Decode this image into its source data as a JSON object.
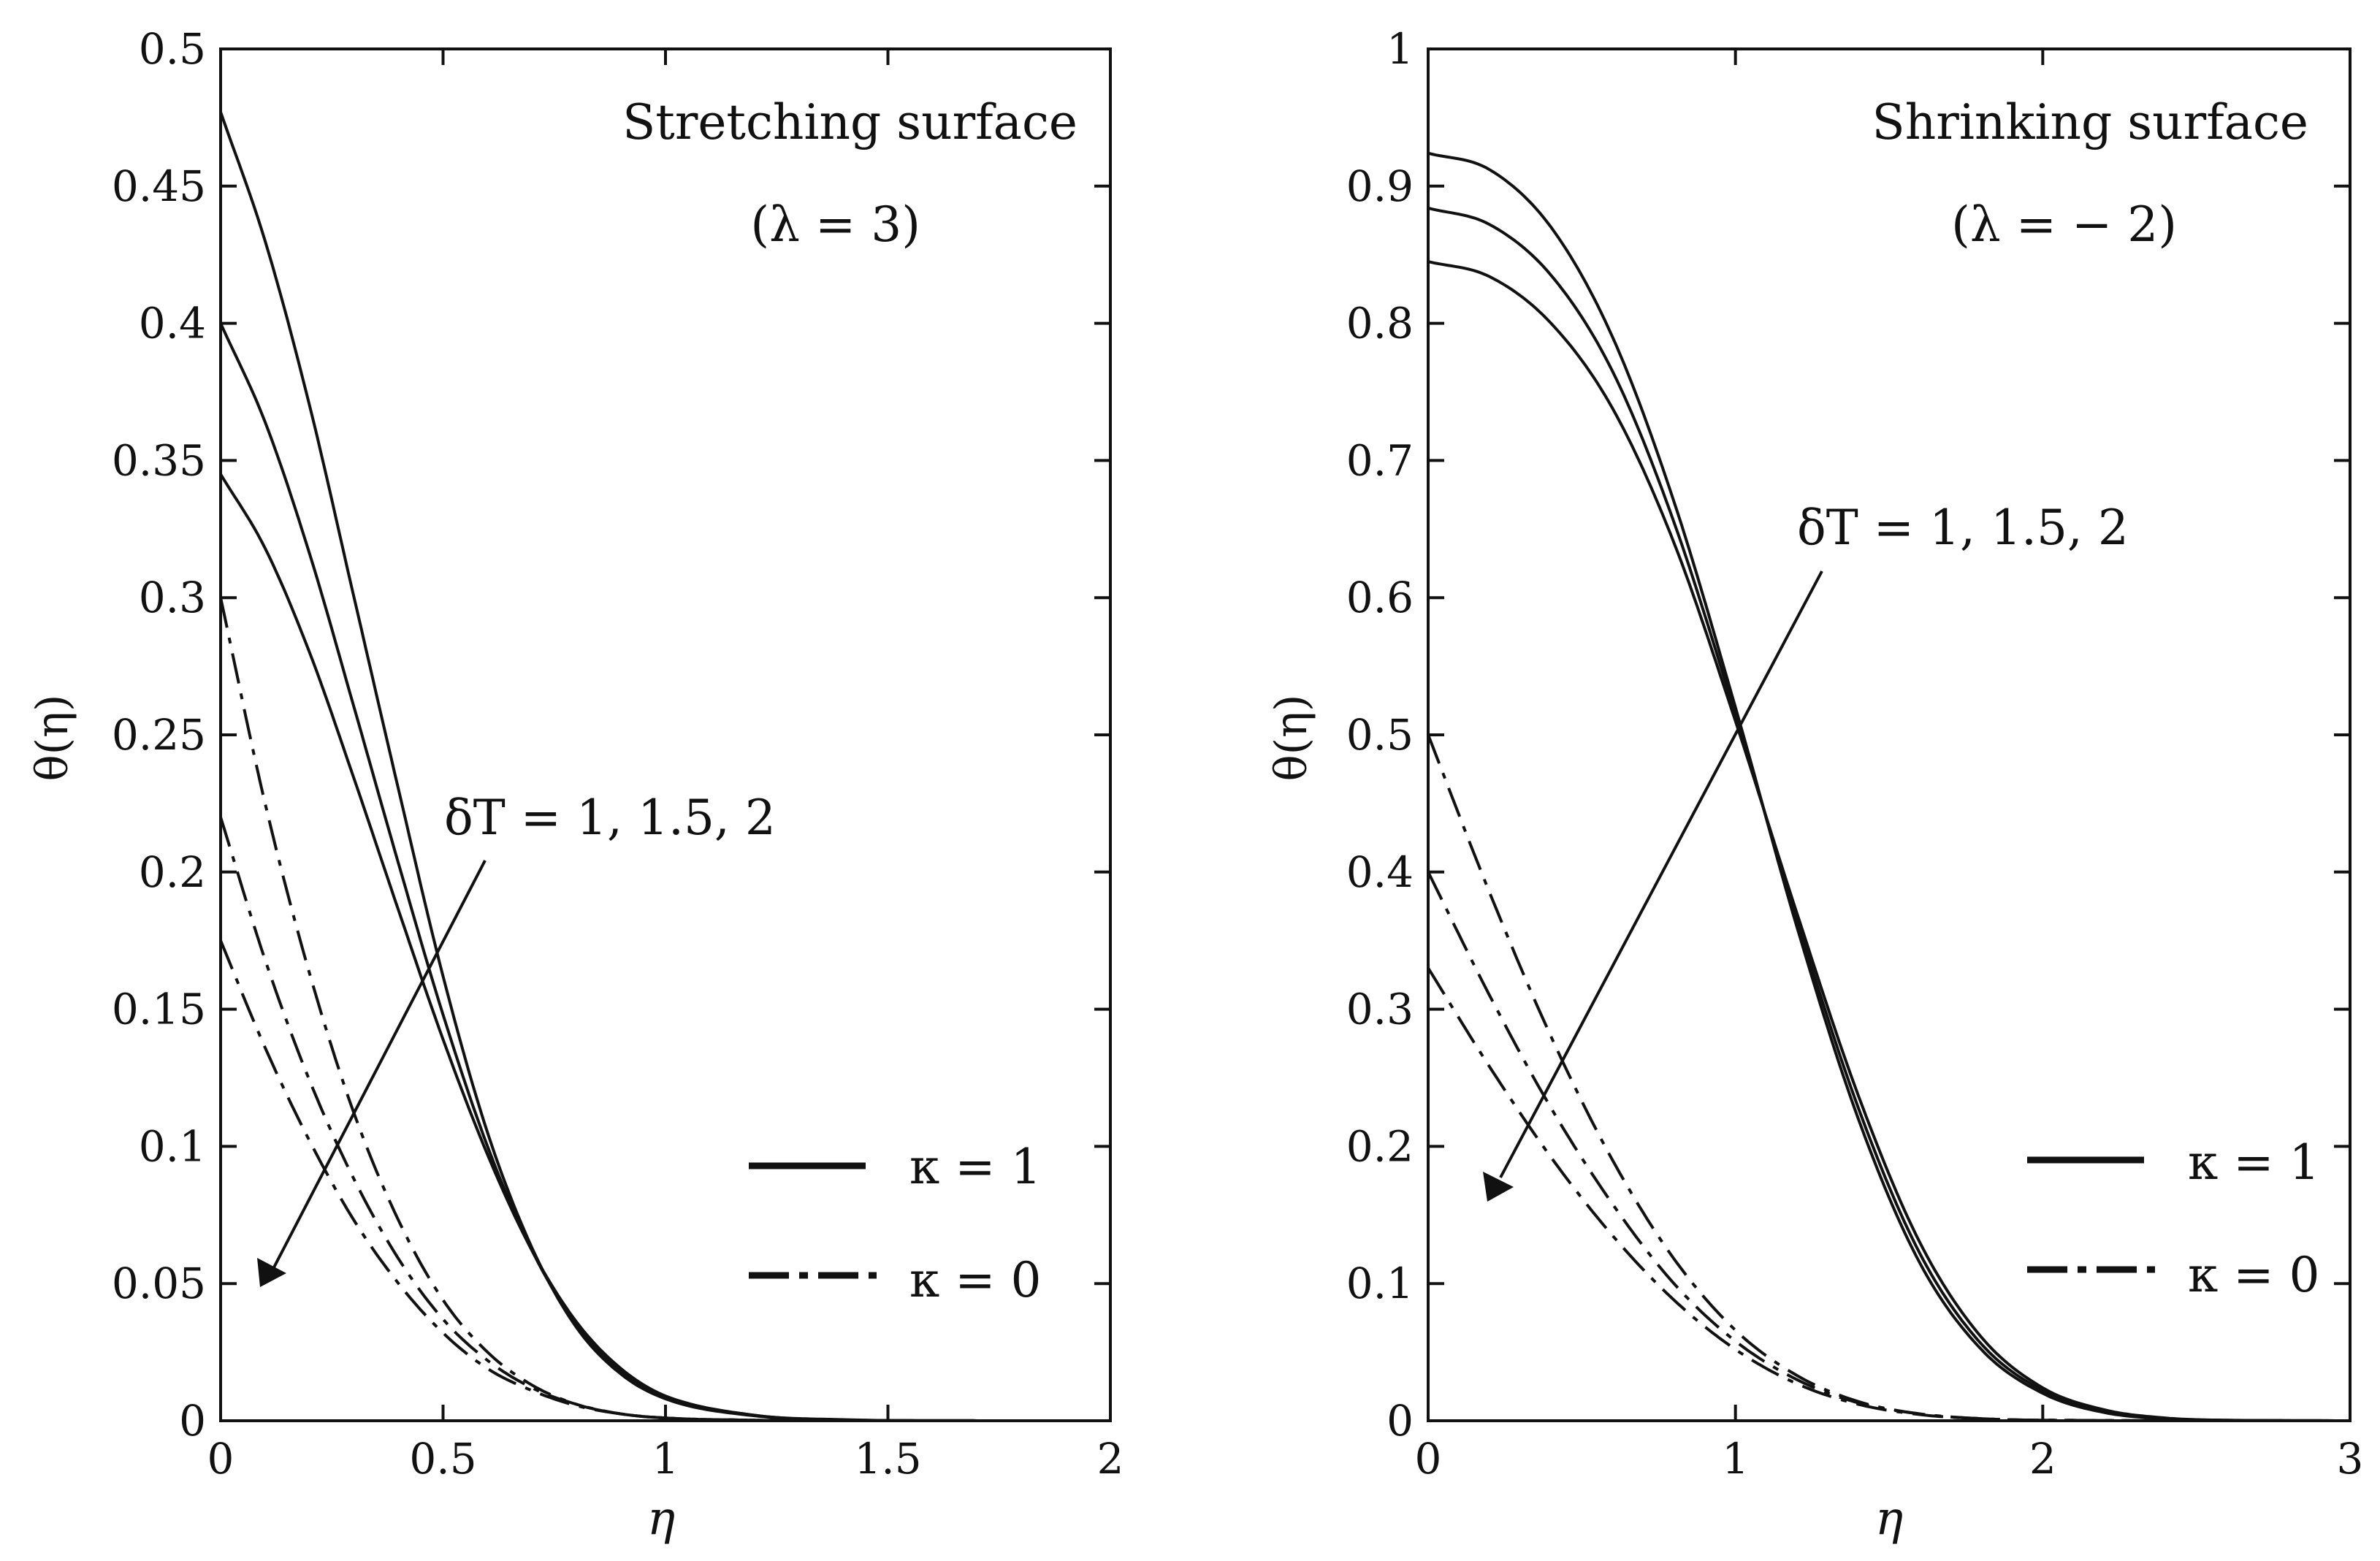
{
  "chart_data": [
    {
      "type": "line",
      "title": "Stretching surface",
      "subtitle": "(λ = 3)",
      "xlabel": "η",
      "ylabel": "θ(η)",
      "xlim": [
        0,
        2
      ],
      "ylim": [
        0,
        0.5
      ],
      "xticks": [
        0,
        0.5,
        1,
        1.5,
        2
      ],
      "xtick_labels": [
        "0",
        "0.5",
        "1",
        "1.5",
        "2"
      ],
      "yticks": [
        0,
        0.05,
        0.1,
        0.15,
        0.2,
        0.25,
        0.3,
        0.35,
        0.4,
        0.45,
        0.5
      ],
      "ytick_labels": [
        "0",
        "0.05",
        "0.1",
        "0.15",
        "0.2",
        "0.25",
        "0.3",
        "0.35",
        "0.4",
        "0.45",
        "0.5"
      ],
      "annotation": "δT = 1, 1.5, 2",
      "legend": [
        {
          "label": "κ = 1",
          "style": "solid"
        },
        {
          "label": "κ = 0",
          "style": "dashdot"
        }
      ],
      "legend_position": "lower-right",
      "series": [
        {
          "name": "κ = 1, δT = 1",
          "style": "solid",
          "x": [
            0,
            0.1,
            0.2,
            0.3,
            0.4,
            0.5,
            0.6,
            0.7,
            0.8,
            0.9,
            1.0,
            1.2,
            1.4,
            1.6,
            2.0
          ],
          "y": [
            0.477,
            0.43,
            0.37,
            0.3,
            0.23,
            0.162,
            0.105,
            0.063,
            0.034,
            0.017,
            0.008,
            0.0018,
            0.0003,
            3e-05,
            0
          ]
        },
        {
          "name": "κ = 1, δT = 1.5",
          "style": "solid",
          "x": [
            0,
            0.1,
            0.2,
            0.3,
            0.4,
            0.5,
            0.6,
            0.7,
            0.8,
            0.9,
            1.0,
            1.2,
            1.4,
            1.6,
            2.0
          ],
          "y": [
            0.4,
            0.364,
            0.316,
            0.26,
            0.203,
            0.148,
            0.1,
            0.062,
            0.035,
            0.018,
            0.009,
            0.002,
            0.0003,
            3e-05,
            0
          ]
        },
        {
          "name": "κ = 1, δT = 2",
          "style": "solid",
          "x": [
            0,
            0.1,
            0.2,
            0.3,
            0.4,
            0.5,
            0.6,
            0.7,
            0.8,
            0.9,
            1.0,
            1.2,
            1.4,
            1.6,
            2.0
          ],
          "y": [
            0.345,
            0.318,
            0.28,
            0.234,
            0.186,
            0.139,
            0.097,
            0.062,
            0.036,
            0.019,
            0.009,
            0.002,
            0.0004,
            3e-05,
            0
          ]
        },
        {
          "name": "κ = 0, δT = 1",
          "style": "dashdot",
          "x": [
            0,
            0.1,
            0.2,
            0.3,
            0.4,
            0.5,
            0.6,
            0.7,
            0.8,
            0.9,
            1.0,
            1.2,
            1.4,
            2.0
          ],
          "y": [
            0.3,
            0.225,
            0.163,
            0.112,
            0.073,
            0.044,
            0.025,
            0.013,
            0.006,
            0.0025,
            0.001,
            0.0002,
            0,
            0
          ]
        },
        {
          "name": "κ = 0, δT = 1.5",
          "style": "dashdot",
          "x": [
            0,
            0.1,
            0.2,
            0.3,
            0.4,
            0.5,
            0.6,
            0.7,
            0.8,
            0.9,
            1.0,
            1.2,
            1.4,
            2.0
          ],
          "y": [
            0.22,
            0.168,
            0.124,
            0.088,
            0.059,
            0.037,
            0.022,
            0.012,
            0.006,
            0.0025,
            0.001,
            0.0002,
            0,
            0
          ]
        },
        {
          "name": "κ = 0, δT = 2",
          "style": "dashdot",
          "x": [
            0,
            0.1,
            0.2,
            0.3,
            0.4,
            0.5,
            0.6,
            0.7,
            0.8,
            0.9,
            1.0,
            1.2,
            1.4,
            2.0
          ],
          "y": [
            0.175,
            0.136,
            0.102,
            0.073,
            0.05,
            0.032,
            0.019,
            0.011,
            0.0055,
            0.0025,
            0.001,
            0.0002,
            0,
            0
          ]
        }
      ]
    },
    {
      "type": "line",
      "title": "Shrinking surface",
      "subtitle": "(λ = − 2)",
      "xlabel": "η",
      "ylabel": "θ(η)",
      "xlim": [
        0,
        3
      ],
      "ylim": [
        0,
        1
      ],
      "xticks": [
        0,
        1,
        2,
        3
      ],
      "xtick_labels": [
        "0",
        "1",
        "2",
        "3"
      ],
      "yticks": [
        0,
        0.1,
        0.2,
        0.3,
        0.4,
        0.5,
        0.6,
        0.7,
        0.8,
        0.9,
        1
      ],
      "ytick_labels": [
        "0",
        "0.1",
        "0.2",
        "0.3",
        "0.4",
        "0.5",
        "0.6",
        "0.7",
        "0.8",
        "0.9",
        "1"
      ],
      "annotation": "δT = 1, 1.5, 2",
      "legend": [
        {
          "label": "κ = 1",
          "style": "solid"
        },
        {
          "label": "κ = 0",
          "style": "dashdot"
        }
      ],
      "legend_position": "lower-right",
      "series": [
        {
          "name": "κ = 1, δT = 1",
          "style": "solid",
          "x": [
            0,
            0.2,
            0.4,
            0.6,
            0.8,
            1.0,
            1.2,
            1.4,
            1.6,
            1.8,
            2.0,
            2.2,
            2.4,
            2.6,
            3.0
          ],
          "y": [
            0.924,
            0.912,
            0.87,
            0.79,
            0.67,
            0.52,
            0.36,
            0.22,
            0.115,
            0.052,
            0.02,
            0.006,
            0.0015,
            0.0003,
            0
          ]
        },
        {
          "name": "κ = 1, δT = 1.5",
          "style": "solid",
          "x": [
            0,
            0.2,
            0.4,
            0.6,
            0.8,
            1.0,
            1.2,
            1.4,
            1.6,
            1.8,
            2.0,
            2.2,
            2.4,
            2.6,
            3.0
          ],
          "y": [
            0.884,
            0.872,
            0.835,
            0.765,
            0.655,
            0.515,
            0.365,
            0.228,
            0.122,
            0.056,
            0.022,
            0.007,
            0.0018,
            0.0003,
            0
          ]
        },
        {
          "name": "κ = 1, δT = 2",
          "style": "solid",
          "x": [
            0,
            0.2,
            0.4,
            0.6,
            0.8,
            1.0,
            1.2,
            1.4,
            1.6,
            1.8,
            2.0,
            2.2,
            2.4,
            2.6,
            3.0
          ],
          "y": [
            0.845,
            0.834,
            0.8,
            0.738,
            0.64,
            0.51,
            0.37,
            0.237,
            0.13,
            0.061,
            0.024,
            0.008,
            0.002,
            0.0004,
            0
          ]
        },
        {
          "name": "κ = 0, δT = 1",
          "style": "dashdot",
          "x": [
            0,
            0.2,
            0.4,
            0.6,
            0.8,
            1.0,
            1.2,
            1.4,
            1.6,
            1.8,
            2.0,
            3.0
          ],
          "y": [
            0.5,
            0.385,
            0.28,
            0.19,
            0.118,
            0.066,
            0.033,
            0.014,
            0.005,
            0.0015,
            0.0004,
            0
          ]
        },
        {
          "name": "κ = 0, δT = 1.5",
          "style": "dashdot",
          "x": [
            0,
            0.2,
            0.4,
            0.6,
            0.8,
            1.0,
            1.2,
            1.4,
            1.6,
            1.8,
            2.0,
            3.0
          ],
          "y": [
            0.4,
            0.31,
            0.228,
            0.158,
            0.1,
            0.058,
            0.03,
            0.013,
            0.005,
            0.0015,
            0.0004,
            0
          ]
        },
        {
          "name": "κ = 0, δT = 2",
          "style": "dashdot",
          "x": [
            0,
            0.2,
            0.4,
            0.6,
            0.8,
            1.0,
            1.2,
            1.4,
            1.6,
            1.8,
            2.0,
            3.0
          ],
          "y": [
            0.33,
            0.258,
            0.192,
            0.135,
            0.088,
            0.052,
            0.027,
            0.012,
            0.0045,
            0.0015,
            0.0004,
            0
          ]
        }
      ]
    }
  ]
}
